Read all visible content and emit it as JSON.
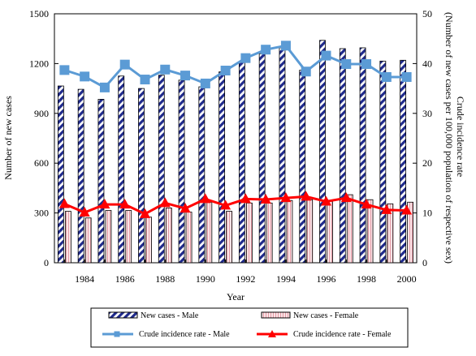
{
  "chart_data": {
    "type": "bar",
    "x": [
      1983,
      1984,
      1985,
      1986,
      1987,
      1988,
      1989,
      1990,
      1991,
      1992,
      1993,
      1994,
      1995,
      1996,
      1997,
      1998,
      1999,
      2000
    ],
    "x_tick_labels": [
      "1984",
      "1986",
      "1988",
      "1990",
      "1992",
      "1994",
      "1996",
      "1998",
      "2000"
    ],
    "xlabel": "Year",
    "ylabel_left": "Number of new cases",
    "ylabel_right": "Crude incidence rate\n(Number of new cases per 100,000 population of respective sex)",
    "ylim_left": [
      0,
      1500
    ],
    "yticks_left": [
      "0",
      "300",
      "600",
      "900",
      "1200",
      "1500"
    ],
    "ylim_right": [
      0,
      50
    ],
    "yticks_right": [
      "0",
      "10",
      "20",
      "30",
      "40",
      "50"
    ],
    "bar_series": [
      {
        "name": "New cases - Male",
        "axis": "left",
        "color": "#1f2a8c",
        "values": [
          1065,
          1045,
          985,
          1125,
          1050,
          1130,
          1100,
          1060,
          1150,
          1210,
          1260,
          1295,
          1160,
          1340,
          1290,
          1295,
          1215,
          1220
        ]
      },
      {
        "name": "New cases - Female",
        "axis": "left",
        "color": "#f4c6cc",
        "values": [
          310,
          270,
          315,
          315,
          275,
          330,
          305,
          365,
          310,
          360,
          360,
          375,
          380,
          370,
          410,
          380,
          355,
          365
        ]
      }
    ],
    "line_series": [
      {
        "name": "Crude incidence rate - Male",
        "axis": "right",
        "color": "#5b9bd5",
        "marker": "square",
        "values": [
          38.7,
          37.4,
          35.2,
          39.8,
          36.8,
          38.8,
          37.6,
          36.0,
          38.6,
          41.1,
          42.8,
          43.6,
          38.4,
          41.6,
          39.9,
          39.9,
          37.3,
          37.3
        ]
      },
      {
        "name": "Crude incidence rate - Female",
        "axis": "right",
        "color": "#ff0000",
        "marker": "triangle",
        "values": [
          11.8,
          10.1,
          11.7,
          11.7,
          9.8,
          12.0,
          10.9,
          12.8,
          11.5,
          12.8,
          12.7,
          13.0,
          13.3,
          12.3,
          13.0,
          11.7,
          10.6,
          10.5
        ]
      }
    ],
    "grid": false,
    "legend_position": "bottom"
  }
}
